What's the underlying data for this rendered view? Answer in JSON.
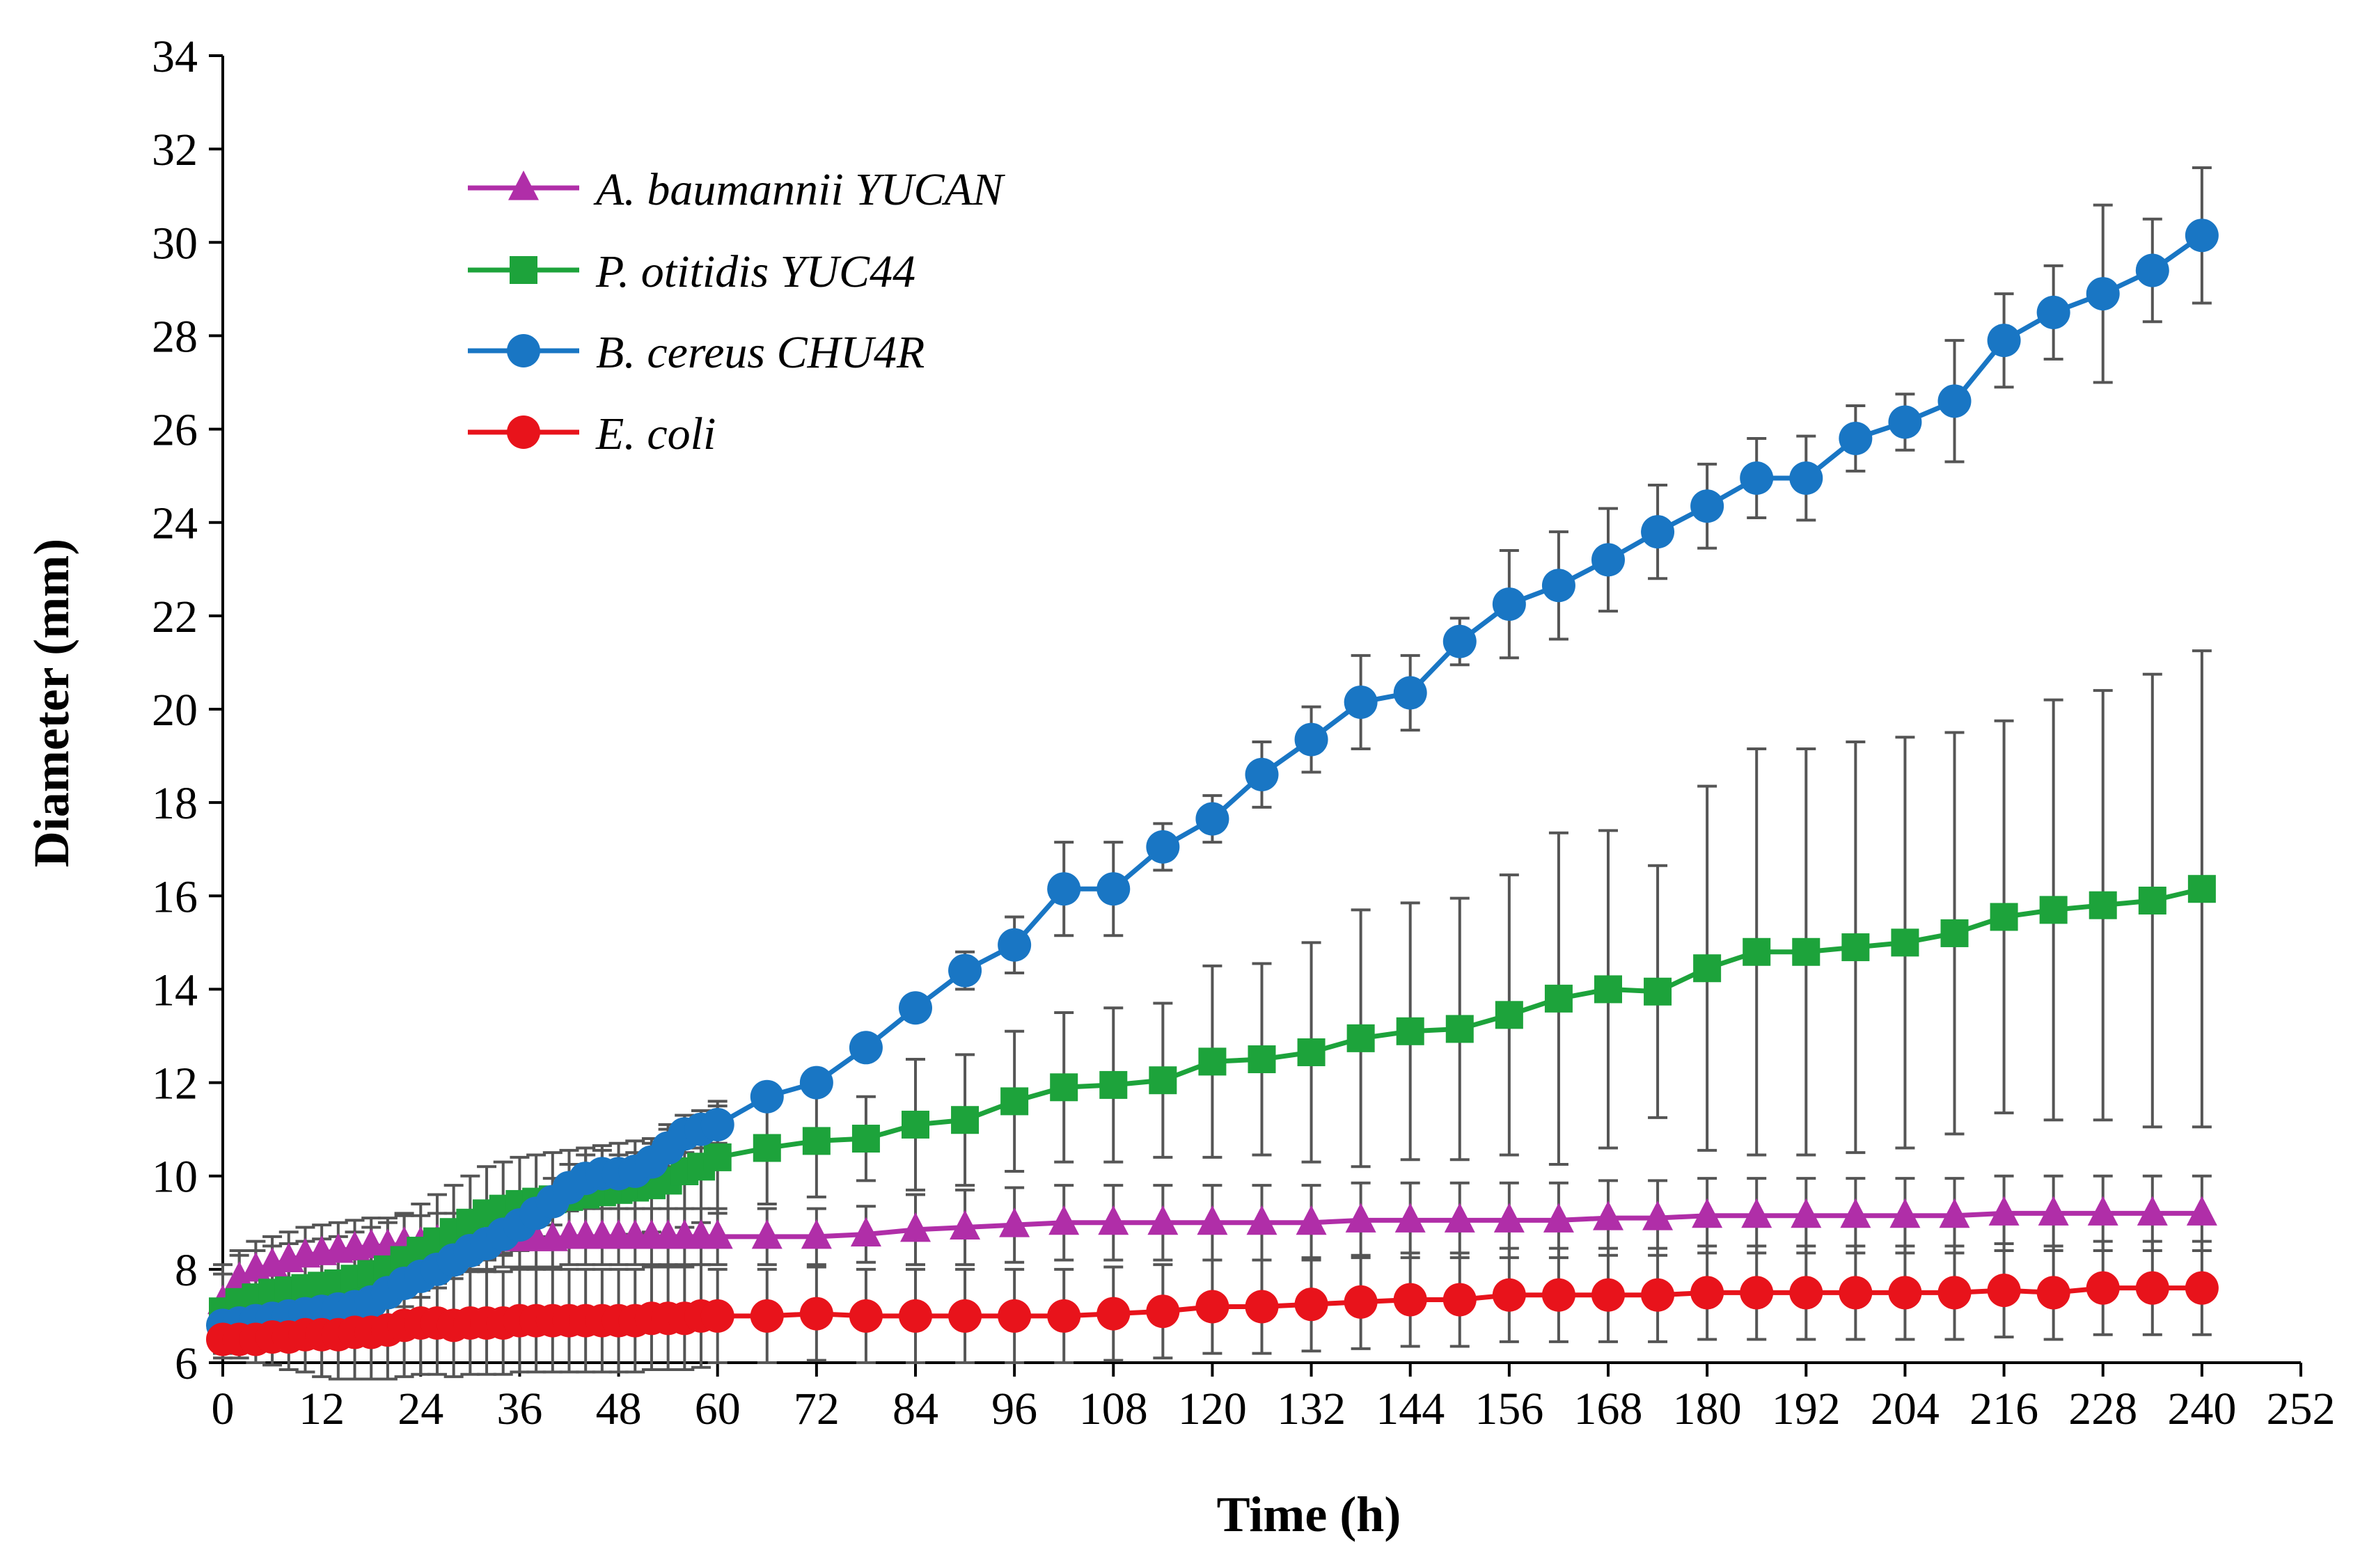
{
  "chart_data": {
    "type": "line",
    "title": "",
    "xlabel": "Time (h)",
    "ylabel": "Diameter (mm)",
    "xlim": [
      0,
      252
    ],
    "ylim": [
      6,
      34
    ],
    "xticks": [
      0,
      12,
      24,
      36,
      48,
      60,
      72,
      84,
      96,
      108,
      120,
      132,
      144,
      156,
      168,
      180,
      192,
      204,
      216,
      228,
      240,
      252
    ],
    "yticks": [
      6,
      8,
      10,
      12,
      14,
      16,
      18,
      20,
      22,
      24,
      26,
      28,
      30,
      32,
      34
    ],
    "grid": false,
    "legend_position": "top-left",
    "series": [
      {
        "name": "A. baumannii YUCAN",
        "color": "#B02EA8",
        "marker": "triangle",
        "x": [
          0,
          2,
          4,
          6,
          8,
          10,
          12,
          14,
          16,
          18,
          20,
          22,
          24,
          26,
          28,
          30,
          32,
          34,
          36,
          38,
          40,
          42,
          44,
          46,
          48,
          50,
          52,
          54,
          56,
          58,
          60,
          66,
          72,
          78,
          84,
          90,
          96,
          102,
          108,
          114,
          120,
          126,
          132,
          138,
          144,
          150,
          156,
          162,
          168,
          174,
          180,
          186,
          192,
          198,
          204,
          210,
          216,
          222,
          228,
          234,
          240
        ],
        "y": [
          7.3,
          7.8,
          8.0,
          8.1,
          8.2,
          8.3,
          8.35,
          8.4,
          8.45,
          8.5,
          8.5,
          8.55,
          8.55,
          8.6,
          8.6,
          8.6,
          8.6,
          8.65,
          8.65,
          8.65,
          8.65,
          8.7,
          8.7,
          8.7,
          8.7,
          8.7,
          8.7,
          8.7,
          8.7,
          8.7,
          8.7,
          8.7,
          8.7,
          8.75,
          8.85,
          8.9,
          8.95,
          9.0,
          9.0,
          9.0,
          9.0,
          9.0,
          9.0,
          9.05,
          9.05,
          9.05,
          9.05,
          9.05,
          9.1,
          9.1,
          9.15,
          9.15,
          9.15,
          9.15,
          9.15,
          9.15,
          9.2,
          9.2,
          9.2,
          9.2,
          9.2
        ],
        "err": [
          0.6,
          0.6,
          0.6,
          0.6,
          0.6,
          0.6,
          0.6,
          0.6,
          0.6,
          0.6,
          0.6,
          0.6,
          0.6,
          0.6,
          0.6,
          0.6,
          0.6,
          0.6,
          0.6,
          0.6,
          0.6,
          0.6,
          0.6,
          0.6,
          0.6,
          0.6,
          0.6,
          0.6,
          0.6,
          0.6,
          0.6,
          0.6,
          0.6,
          0.6,
          0.75,
          0.8,
          0.8,
          0.8,
          0.8,
          0.8,
          0.8,
          0.8,
          0.8,
          0.8,
          0.8,
          0.8,
          0.8,
          0.8,
          0.8,
          0.8,
          0.8,
          0.8,
          0.8,
          0.8,
          0.8,
          0.8,
          0.8,
          0.8,
          0.8,
          0.8,
          0.8
        ]
      },
      {
        "name": "P. otitidis YUC44",
        "color": "#1DA33B",
        "marker": "square",
        "x": [
          0,
          2,
          4,
          6,
          8,
          10,
          12,
          14,
          16,
          18,
          20,
          22,
          24,
          26,
          28,
          30,
          32,
          34,
          36,
          38,
          40,
          42,
          44,
          46,
          48,
          50,
          52,
          54,
          56,
          58,
          60,
          66,
          72,
          78,
          84,
          90,
          96,
          102,
          108,
          114,
          120,
          126,
          132,
          138,
          144,
          150,
          156,
          162,
          168,
          174,
          180,
          186,
          192,
          198,
          204,
          210,
          216,
          222,
          228,
          234,
          240
        ],
        "y": [
          7.1,
          7.3,
          7.4,
          7.5,
          7.55,
          7.6,
          7.65,
          7.7,
          7.8,
          7.9,
          8.0,
          8.2,
          8.4,
          8.6,
          8.8,
          9.0,
          9.2,
          9.3,
          9.4,
          9.45,
          9.5,
          9.55,
          9.6,
          9.65,
          9.7,
          9.75,
          9.8,
          9.9,
          10.1,
          10.2,
          10.4,
          10.6,
          10.75,
          10.8,
          11.1,
          11.2,
          11.6,
          11.9,
          11.95,
          12.05,
          12.45,
          12.5,
          12.65,
          12.95,
          13.1,
          13.15,
          13.45,
          13.8,
          14.0,
          13.95,
          14.45,
          14.8,
          14.8,
          14.9,
          15.0,
          15.2,
          15.55,
          15.7,
          15.8,
          15.9,
          16.15
        ],
        "err": [
          1.0,
          1.0,
          1.0,
          1.0,
          1.0,
          1.0,
          1.0,
          1.0,
          1.0,
          1.0,
          1.0,
          1.0,
          1.0,
          1.0,
          1.0,
          1.0,
          1.0,
          1.0,
          1.0,
          1.0,
          1.0,
          1.0,
          1.0,
          1.0,
          1.0,
          1.0,
          1.0,
          1.2,
          1.2,
          1.2,
          1.2,
          1.2,
          1.2,
          0.9,
          1.4,
          1.4,
          1.5,
          1.6,
          1.65,
          1.65,
          2.05,
          2.05,
          2.35,
          2.75,
          2.75,
          2.8,
          3.0,
          3.55,
          3.4,
          2.7,
          3.9,
          4.35,
          4.35,
          4.4,
          4.4,
          4.3,
          4.2,
          4.5,
          4.6,
          4.85,
          5.1
        ]
      },
      {
        "name": "B. cereus CHU4R",
        "color": "#1976C4",
        "marker": "circle",
        "x": [
          0,
          2,
          4,
          6,
          8,
          10,
          12,
          14,
          16,
          18,
          20,
          22,
          24,
          26,
          28,
          30,
          32,
          34,
          36,
          38,
          40,
          42,
          44,
          46,
          48,
          50,
          52,
          54,
          56,
          58,
          60,
          66,
          72,
          78,
          84,
          90,
          96,
          102,
          108,
          114,
          120,
          126,
          132,
          138,
          144,
          150,
          156,
          162,
          168,
          174,
          180,
          186,
          192,
          198,
          204,
          210,
          216,
          222,
          228,
          234,
          240
        ],
        "y": [
          6.8,
          6.85,
          6.9,
          6.95,
          7.0,
          7.05,
          7.1,
          7.15,
          7.2,
          7.3,
          7.5,
          7.7,
          7.85,
          8.0,
          8.2,
          8.4,
          8.55,
          8.75,
          8.95,
          9.2,
          9.45,
          9.75,
          9.95,
          10.05,
          10.05,
          10.1,
          10.3,
          10.6,
          10.9,
          11.0,
          11.1,
          11.7,
          12.0,
          12.75,
          13.6,
          14.4,
          14.95,
          16.15,
          16.15,
          17.05,
          17.65,
          18.6,
          19.35,
          20.15,
          20.35,
          21.45,
          22.25,
          22.65,
          23.2,
          23.8,
          24.35,
          24.95,
          24.95,
          25.8,
          26.15,
          26.6,
          27.9,
          28.5,
          28.9,
          29.4,
          30.15
        ],
        "err": [
          0.3,
          0.3,
          0.3,
          0.3,
          0.3,
          0.3,
          0.3,
          0.3,
          0.3,
          0.3,
          0.3,
          0.3,
          0.3,
          0.3,
          0.3,
          0.3,
          0.3,
          0.4,
          0.5,
          0.5,
          0.5,
          0.5,
          0.5,
          0.5,
          0.4,
          0.4,
          0.4,
          0.4,
          0.4,
          0.4,
          0.4,
          0.0,
          0.0,
          0.0,
          0.0,
          0.4,
          0.6,
          1.0,
          1.0,
          0.5,
          0.5,
          0.7,
          0.7,
          1.0,
          0.8,
          0.5,
          1.15,
          1.15,
          1.1,
          1.0,
          0.9,
          0.85,
          0.9,
          0.7,
          0.6,
          1.3,
          1.0,
          1.0,
          1.9,
          1.1,
          1.45
        ]
      },
      {
        "name": "E. coli",
        "color": "#E8131B",
        "marker": "circle",
        "x": [
          0,
          2,
          4,
          6,
          8,
          10,
          12,
          14,
          16,
          18,
          20,
          22,
          24,
          26,
          28,
          30,
          32,
          34,
          36,
          38,
          40,
          42,
          44,
          46,
          48,
          50,
          52,
          54,
          56,
          58,
          60,
          66,
          72,
          78,
          84,
          90,
          96,
          102,
          108,
          114,
          120,
          126,
          132,
          138,
          144,
          150,
          156,
          162,
          168,
          174,
          180,
          186,
          192,
          198,
          204,
          210,
          216,
          222,
          228,
          234,
          240
        ],
        "y": [
          6.5,
          6.5,
          6.5,
          6.55,
          6.55,
          6.6,
          6.6,
          6.6,
          6.65,
          6.65,
          6.7,
          6.8,
          6.85,
          6.85,
          6.8,
          6.85,
          6.85,
          6.85,
          6.9,
          6.9,
          6.9,
          6.9,
          6.9,
          6.9,
          6.9,
          6.9,
          6.95,
          6.95,
          6.95,
          7.0,
          7.0,
          7.0,
          7.05,
          7.0,
          7.0,
          7.0,
          7.0,
          7.0,
          7.05,
          7.1,
          7.2,
          7.2,
          7.25,
          7.3,
          7.35,
          7.35,
          7.45,
          7.45,
          7.45,
          7.45,
          7.5,
          7.5,
          7.5,
          7.5,
          7.5,
          7.5,
          7.55,
          7.5,
          7.6,
          7.6,
          7.6
        ],
        "err": [
          0.3,
          0.4,
          0.5,
          0.6,
          0.7,
          0.8,
          0.9,
          0.95,
          1.0,
          1.0,
          1.05,
          1.1,
          1.1,
          1.1,
          1.1,
          1.1,
          1.1,
          1.1,
          1.1,
          1.1,
          1.1,
          1.1,
          1.1,
          1.1,
          1.1,
          1.1,
          1.1,
          1.1,
          1.1,
          1.1,
          1.0,
          1.0,
          1.0,
          1.0,
          1.0,
          1.0,
          1.0,
          1.0,
          1.0,
          1.0,
          1.0,
          1.0,
          1.0,
          1.0,
          1.0,
          1.0,
          1.0,
          1.0,
          1.0,
          1.0,
          1.0,
          1.0,
          1.0,
          1.0,
          1.0,
          1.0,
          1.0,
          1.0,
          1.0,
          1.0,
          1.0
        ]
      }
    ]
  }
}
